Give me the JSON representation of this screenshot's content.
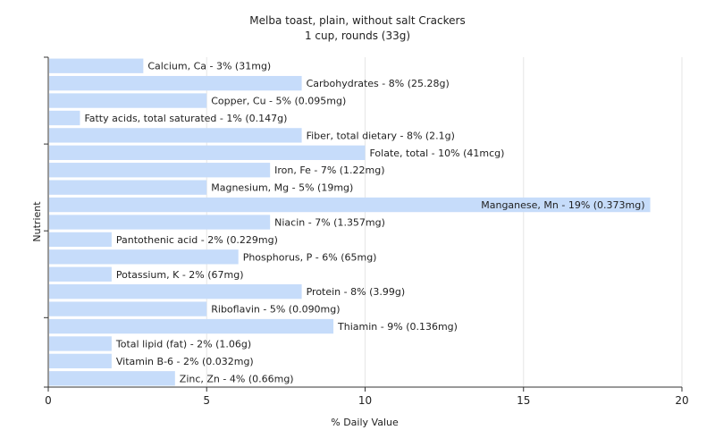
{
  "chart_data": {
    "type": "bar",
    "orientation": "horizontal",
    "title": "Melba toast, plain, without salt Crackers",
    "subtitle": "1 cup, rounds (33g)",
    "xlabel": "% Daily Value",
    "ylabel": "Nutrient",
    "xlim": [
      0,
      20
    ],
    "xticks": [
      "0",
      "5",
      "10",
      "15",
      "20"
    ],
    "grid": true,
    "bar_color": "#c6dcfa",
    "categories": [
      "Calcium, Ca",
      "Carbohydrates",
      "Copper, Cu",
      "Fatty acids, total saturated",
      "Fiber, total dietary",
      "Folate, total",
      "Iron, Fe",
      "Magnesium, Mg",
      "Manganese, Mn",
      "Niacin",
      "Pantothenic acid",
      "Phosphorus, P",
      "Potassium, K",
      "Protein",
      "Riboflavin",
      "Thiamin",
      "Total lipid (fat)",
      "Vitamin B-6",
      "Zinc, Zn"
    ],
    "values": [
      3,
      8,
      5,
      1,
      8,
      10,
      7,
      5,
      19,
      7,
      2,
      6,
      2,
      8,
      5,
      9,
      2,
      2,
      4
    ],
    "labels": [
      "Calcium, Ca - 3% (31mg)",
      "Carbohydrates - 8% (25.28g)",
      "Copper, Cu - 5% (0.095mg)",
      "Fatty acids, total saturated - 1% (0.147g)",
      "Fiber, total dietary - 8% (2.1g)",
      "Folate, total - 10% (41mcg)",
      "Iron, Fe - 7% (1.22mg)",
      "Magnesium, Mg - 5% (19mg)",
      "Manganese, Mn - 19% (0.373mg)",
      "Niacin - 7% (1.357mg)",
      "Pantothenic acid - 2% (0.229mg)",
      "Phosphorus, P - 6% (65mg)",
      "Potassium, K - 2% (67mg)",
      "Protein - 8% (3.99g)",
      "Riboflavin - 5% (0.090mg)",
      "Thiamin - 9% (0.136mg)",
      "Total lipid (fat) - 2% (1.06g)",
      "Vitamin B-6 - 2% (0.032mg)",
      "Zinc, Zn - 4% (0.66mg)"
    ]
  }
}
